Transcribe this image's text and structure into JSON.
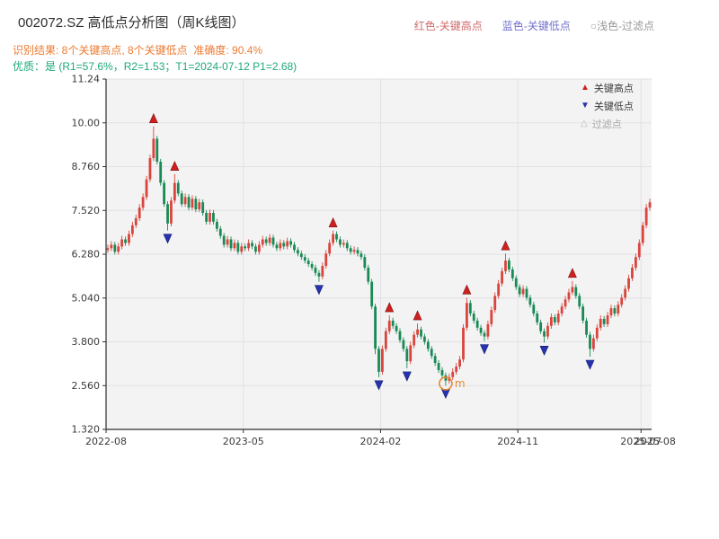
{
  "header": {
    "title": "002072.SZ 高低点分析图（周K线图）",
    "top_legend": {
      "high": "红色-关键高点",
      "low": "蓝色-关键低点",
      "filtered": "○浅色-过滤点"
    },
    "recognition_result": "识别结果: 8个关键高点, 8个关键低点  准确度: 90.4%",
    "quality_line": "优质：是 (R1=57.6%，R2=1.53；T1=2024-07-12 P1=2.68)"
  },
  "colors": {
    "up": "#d9453c",
    "down": "#1a8a55",
    "key_high": "#cf2020",
    "key_high_edge": "#7e1010",
    "key_low": "#2733ae",
    "key_low_edge": "#141d6e",
    "filtered_marker": "#e8872e",
    "filtered_legend_icon": "#bcbcbc",
    "plot_bg": "#f3f3f4",
    "grid": "#e2e2e5",
    "axis": "#2f2f2f",
    "text": "#3a3a3a",
    "legend_high_text": "#cf6b6b",
    "legend_low_text": "#7272cc",
    "legend_filtered_text": "#9a9a9a",
    "recognition_text": "#ec7c33",
    "quality_text": "#1fa877"
  },
  "chart_data": {
    "type": "candlestick",
    "title": "002072.SZ 高低点分析图（周K线图）",
    "xlabel": "",
    "ylabel": "",
    "ylim": [
      1.32,
      11.24
    ],
    "yticks": [
      "11.24",
      "10.00",
      "8.760",
      "7.520",
      "6.280",
      "5.040",
      "3.800",
      "2.560",
      "1.320"
    ],
    "ytick_values": [
      11.24,
      10.0,
      8.76,
      7.52,
      6.28,
      5.04,
      3.8,
      2.56,
      1.32
    ],
    "x_start": "2022-08",
    "x_end": "2025-08",
    "xticks": [
      {
        "week": 0,
        "label": "2022-08"
      },
      {
        "week": 39,
        "label": "2023-05"
      },
      {
        "week": 78,
        "label": "2024-02"
      },
      {
        "week": 117,
        "label": "2024-11"
      },
      {
        "week": 152,
        "label": "2025-07"
      },
      {
        "week": 156,
        "label": "2025-08"
      }
    ],
    "grid": true,
    "legend_position": "top-right",
    "legend": [
      "关键高点",
      "关键低点",
      "过滤点"
    ],
    "key_high_weeks": [
      13,
      19,
      64,
      80,
      88,
      102,
      113,
      132
    ],
    "key_low_weeks": [
      17,
      60,
      77,
      85,
      96,
      107,
      124,
      137
    ],
    "filtered_marker": {
      "week": 96,
      "price": 2.62,
      "label": "m"
    },
    "candles_ohlc": [
      [
        6.4,
        6.55,
        6.32,
        6.45
      ],
      [
        6.45,
        6.65,
        6.37,
        6.55
      ],
      [
        6.55,
        6.63,
        6.27,
        6.35
      ],
      [
        6.35,
        6.6,
        6.27,
        6.5
      ],
      [
        6.5,
        6.8,
        6.42,
        6.7
      ],
      [
        6.7,
        6.78,
        6.52,
        6.6
      ],
      [
        6.6,
        6.95,
        6.52,
        6.85
      ],
      [
        6.85,
        7.2,
        6.77,
        7.1
      ],
      [
        7.1,
        7.4,
        7.02,
        7.3
      ],
      [
        7.3,
        7.7,
        7.22,
        7.6
      ],
      [
        7.6,
        8.0,
        7.52,
        7.9
      ],
      [
        7.9,
        8.5,
        7.82,
        8.4
      ],
      [
        8.4,
        9.1,
        8.32,
        9.0
      ],
      [
        9.0,
        9.9,
        8.92,
        9.55
      ],
      [
        9.55,
        9.63,
        8.82,
        8.9
      ],
      [
        8.9,
        8.98,
        8.22,
        8.3
      ],
      [
        8.3,
        8.38,
        7.62,
        7.7
      ],
      [
        7.7,
        7.78,
        6.95,
        7.15
      ],
      [
        7.15,
        7.9,
        7.07,
        7.8
      ],
      [
        7.8,
        8.55,
        7.72,
        8.3
      ],
      [
        8.3,
        8.38,
        7.92,
        8.0
      ],
      [
        8.0,
        8.08,
        7.62,
        7.7
      ],
      [
        7.7,
        8.0,
        7.62,
        7.9
      ],
      [
        7.9,
        7.98,
        7.52,
        7.6
      ],
      [
        7.6,
        7.95,
        7.52,
        7.85
      ],
      [
        7.85,
        7.93,
        7.47,
        7.55
      ],
      [
        7.55,
        7.85,
        7.47,
        7.75
      ],
      [
        7.75,
        7.83,
        7.37,
        7.45
      ],
      [
        7.45,
        7.53,
        7.12,
        7.2
      ],
      [
        7.2,
        7.55,
        7.12,
        7.45
      ],
      [
        7.45,
        7.53,
        7.12,
        7.2
      ],
      [
        7.2,
        7.28,
        6.92,
        7.0
      ],
      [
        7.0,
        7.08,
        6.72,
        6.8
      ],
      [
        6.8,
        6.88,
        6.47,
        6.55
      ],
      [
        6.55,
        6.8,
        6.47,
        6.7
      ],
      [
        6.7,
        6.78,
        6.37,
        6.45
      ],
      [
        6.45,
        6.7,
        6.37,
        6.6
      ],
      [
        6.6,
        6.68,
        6.27,
        6.35
      ],
      [
        6.35,
        6.6,
        6.27,
        6.5
      ],
      [
        6.5,
        6.58,
        6.37,
        6.45
      ],
      [
        6.45,
        6.7,
        6.37,
        6.6
      ],
      [
        6.6,
        6.68,
        6.42,
        6.5
      ],
      [
        6.5,
        6.58,
        6.27,
        6.35
      ],
      [
        6.35,
        6.65,
        6.27,
        6.55
      ],
      [
        6.55,
        6.8,
        6.47,
        6.7
      ],
      [
        6.7,
        6.78,
        6.52,
        6.6
      ],
      [
        6.6,
        6.85,
        6.52,
        6.75
      ],
      [
        6.75,
        6.83,
        6.47,
        6.55
      ],
      [
        6.55,
        6.63,
        6.37,
        6.45
      ],
      [
        6.45,
        6.7,
        6.37,
        6.6
      ],
      [
        6.6,
        6.68,
        6.42,
        6.5
      ],
      [
        6.5,
        6.75,
        6.42,
        6.65
      ],
      [
        6.65,
        6.73,
        6.47,
        6.55
      ],
      [
        6.55,
        6.63,
        6.32,
        6.4
      ],
      [
        6.4,
        6.48,
        6.22,
        6.3
      ],
      [
        6.3,
        6.38,
        6.12,
        6.2
      ],
      [
        6.2,
        6.28,
        6.02,
        6.1
      ],
      [
        6.1,
        6.18,
        5.92,
        6.0
      ],
      [
        6.0,
        6.08,
        5.82,
        5.9
      ],
      [
        5.9,
        5.98,
        5.67,
        5.75
      ],
      [
        5.75,
        5.83,
        5.5,
        5.65
      ],
      [
        5.65,
        6.05,
        5.57,
        5.95
      ],
      [
        5.95,
        6.4,
        5.87,
        6.3
      ],
      [
        6.3,
        6.7,
        6.22,
        6.6
      ],
      [
        6.6,
        6.95,
        6.52,
        6.85
      ],
      [
        6.85,
        6.93,
        6.62,
        6.7
      ],
      [
        6.7,
        6.78,
        6.47,
        6.55
      ],
      [
        6.55,
        6.7,
        6.47,
        6.6
      ],
      [
        6.6,
        6.68,
        6.37,
        6.45
      ],
      [
        6.45,
        6.53,
        6.27,
        6.35
      ],
      [
        6.35,
        6.5,
        6.27,
        6.4
      ],
      [
        6.4,
        6.48,
        6.22,
        6.3
      ],
      [
        6.3,
        6.38,
        6.12,
        6.2
      ],
      [
        6.2,
        6.28,
        5.82,
        5.9
      ],
      [
        5.9,
        5.98,
        5.42,
        5.5
      ],
      [
        5.5,
        5.58,
        4.72,
        4.8
      ],
      [
        4.8,
        4.88,
        3.45,
        3.6
      ],
      [
        3.6,
        3.68,
        2.8,
        2.95
      ],
      [
        2.95,
        3.7,
        2.87,
        3.6
      ],
      [
        3.6,
        4.2,
        3.52,
        4.1
      ],
      [
        4.1,
        4.55,
        4.02,
        4.4
      ],
      [
        4.4,
        4.48,
        4.17,
        4.25
      ],
      [
        4.25,
        4.33,
        4.02,
        4.1
      ],
      [
        4.1,
        4.18,
        3.77,
        3.85
      ],
      [
        3.85,
        3.93,
        3.52,
        3.6
      ],
      [
        3.6,
        3.68,
        3.05,
        3.25
      ],
      [
        3.25,
        3.8,
        3.17,
        3.7
      ],
      [
        3.7,
        4.1,
        3.62,
        4.0
      ],
      [
        4.0,
        4.32,
        3.92,
        4.15
      ],
      [
        4.15,
        4.23,
        3.87,
        3.95
      ],
      [
        3.95,
        4.03,
        3.72,
        3.8
      ],
      [
        3.8,
        3.88,
        3.52,
        3.6
      ],
      [
        3.6,
        3.68,
        3.32,
        3.4
      ],
      [
        3.4,
        3.48,
        3.12,
        3.2
      ],
      [
        3.2,
        3.28,
        2.92,
        3.0
      ],
      [
        3.0,
        3.08,
        2.77,
        2.85
      ],
      [
        2.85,
        2.93,
        2.56,
        2.7
      ],
      [
        2.7,
        2.9,
        2.62,
        2.8
      ],
      [
        2.8,
        3.05,
        2.72,
        2.95
      ],
      [
        2.95,
        3.2,
        2.87,
        3.1
      ],
      [
        3.1,
        3.4,
        3.02,
        3.3
      ],
      [
        3.3,
        4.3,
        3.22,
        4.2
      ],
      [
        4.2,
        5.05,
        4.12,
        4.9
      ],
      [
        4.9,
        4.98,
        4.52,
        4.6
      ],
      [
        4.6,
        4.68,
        4.32,
        4.4
      ],
      [
        4.4,
        4.48,
        4.12,
        4.2
      ],
      [
        4.2,
        4.28,
        3.97,
        4.05
      ],
      [
        4.05,
        4.13,
        3.82,
        3.95
      ],
      [
        3.95,
        4.4,
        3.87,
        4.3
      ],
      [
        4.3,
        4.8,
        4.22,
        4.7
      ],
      [
        4.7,
        5.2,
        4.62,
        5.1
      ],
      [
        5.1,
        5.55,
        5.02,
        5.45
      ],
      [
        5.45,
        5.9,
        5.37,
        5.8
      ],
      [
        5.8,
        6.3,
        5.72,
        6.1
      ],
      [
        6.1,
        6.18,
        5.77,
        5.85
      ],
      [
        5.85,
        5.93,
        5.52,
        5.6
      ],
      [
        5.6,
        5.68,
        5.27,
        5.35
      ],
      [
        5.35,
        5.43,
        5.07,
        5.15
      ],
      [
        5.15,
        5.4,
        5.07,
        5.3
      ],
      [
        5.3,
        5.38,
        4.97,
        5.05
      ],
      [
        5.05,
        5.13,
        4.77,
        4.85
      ],
      [
        4.85,
        4.93,
        4.52,
        4.6
      ],
      [
        4.6,
        4.68,
        4.27,
        4.35
      ],
      [
        4.35,
        4.43,
        4.02,
        4.1
      ],
      [
        4.1,
        4.18,
        3.78,
        3.95
      ],
      [
        3.95,
        4.35,
        3.87,
        4.25
      ],
      [
        4.25,
        4.6,
        4.17,
        4.5
      ],
      [
        4.5,
        4.58,
        4.27,
        4.35
      ],
      [
        4.35,
        4.7,
        4.27,
        4.6
      ],
      [
        4.6,
        4.9,
        4.52,
        4.8
      ],
      [
        4.8,
        5.1,
        4.72,
        5.0
      ],
      [
        5.0,
        5.3,
        4.92,
        5.2
      ],
      [
        5.2,
        5.52,
        5.12,
        5.35
      ],
      [
        5.35,
        5.43,
        5.02,
        5.1
      ],
      [
        5.1,
        5.18,
        4.72,
        4.8
      ],
      [
        4.8,
        4.88,
        4.32,
        4.4
      ],
      [
        4.4,
        4.48,
        3.92,
        4.0
      ],
      [
        4.0,
        4.08,
        3.38,
        3.6
      ],
      [
        3.6,
        4.0,
        3.52,
        3.9
      ],
      [
        3.9,
        4.3,
        3.82,
        4.2
      ],
      [
        4.2,
        4.55,
        4.12,
        4.45
      ],
      [
        4.45,
        4.53,
        4.22,
        4.3
      ],
      [
        4.3,
        4.65,
        4.22,
        4.55
      ],
      [
        4.55,
        4.85,
        4.47,
        4.75
      ],
      [
        4.75,
        4.83,
        4.52,
        4.6
      ],
      [
        4.6,
        4.95,
        4.52,
        4.85
      ],
      [
        4.85,
        5.15,
        4.77,
        5.05
      ],
      [
        5.05,
        5.4,
        4.97,
        5.3
      ],
      [
        5.3,
        5.7,
        5.22,
        5.6
      ],
      [
        5.6,
        6.0,
        5.52,
        5.9
      ],
      [
        5.9,
        6.3,
        5.82,
        6.2
      ],
      [
        6.2,
        6.7,
        6.12,
        6.6
      ],
      [
        6.6,
        7.2,
        6.52,
        7.1
      ],
      [
        7.1,
        7.7,
        7.02,
        7.6
      ],
      [
        7.6,
        7.85,
        7.52,
        7.75
      ]
    ]
  }
}
